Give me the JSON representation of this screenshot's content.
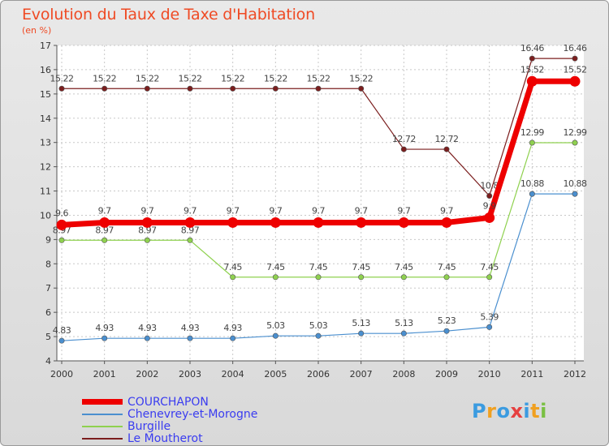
{
  "title": "Evolution du Taux de Taxe d'Habitation",
  "subtitle": "(en %)",
  "logo": {
    "text": "Proxiti",
    "letters": [
      "P",
      "r",
      "o",
      "x",
      "i",
      "t",
      "i"
    ],
    "colors": [
      "#3b9be0",
      "#f0a020",
      "#3b9be0",
      "#e64040",
      "#3b9be0",
      "#f0a020",
      "#7ac043"
    ]
  },
  "chart_data": {
    "type": "line",
    "title": "Evolution du Taux de Taxe d'Habitation",
    "ylabel": "(en %)",
    "xlabel": "",
    "ylim": [
      4,
      17
    ],
    "yticks": [
      4,
      5,
      6,
      7,
      8,
      9,
      10,
      11,
      12,
      13,
      14,
      15,
      16,
      17
    ],
    "grid": true,
    "legend_position": "bottom-left",
    "x": [
      "2000",
      "2001",
      "2002",
      "2003",
      "2004",
      "2005",
      "2006",
      "2007",
      "2008",
      "2009",
      "2010",
      "2011",
      "2012"
    ],
    "series": [
      {
        "name": "Le Moutherot",
        "color": "#7b1e1e",
        "values": [
          15.22,
          15.22,
          15.22,
          15.22,
          15.22,
          15.22,
          15.22,
          15.22,
          12.72,
          12.72,
          10.8,
          16.46,
          16.46
        ],
        "labels": [
          "15.22",
          "15.22",
          "15.22",
          "15.22",
          "15.22",
          "15.22",
          "15.22",
          "15.22",
          "12.72",
          "12.72",
          "10.8",
          "16.46",
          "16.46"
        ]
      },
      {
        "name": "Burgille",
        "color": "#8fd14f",
        "values": [
          8.97,
          8.97,
          8.97,
          8.97,
          7.45,
          7.45,
          7.45,
          7.45,
          7.45,
          7.45,
          7.45,
          12.99,
          12.99
        ],
        "labels": [
          "8.97",
          "8.97",
          "8.97",
          "8.97",
          "7.45",
          "7.45",
          "7.45",
          "7.45",
          "7.45",
          "7.45",
          "7.45",
          "12.99",
          "12.99"
        ]
      },
      {
        "name": "Chenevrey-et-Morogne",
        "color": "#4a8fcf",
        "values": [
          4.83,
          4.93,
          4.93,
          4.93,
          4.93,
          5.03,
          5.03,
          5.13,
          5.13,
          5.23,
          5.39,
          10.88,
          10.88
        ],
        "labels": [
          "4.83",
          "4.93",
          "4.93",
          "4.93",
          "4.93",
          "5.03",
          "5.03",
          "5.13",
          "5.13",
          "5.23",
          "5.39",
          "10.88",
          "10.88"
        ]
      },
      {
        "name": "COURCHAPON",
        "color": "#ee0000",
        "values": [
          9.6,
          9.7,
          9.7,
          9.7,
          9.7,
          9.7,
          9.7,
          9.7,
          9.7,
          9.7,
          9.9,
          15.52,
          15.52
        ],
        "labels": [
          "9.6",
          "9.7",
          "9.7",
          "9.7",
          "9.7",
          "9.7",
          "9.7",
          "9.7",
          "9.7",
          "9.7",
          "9.9",
          "15.52",
          "15.52"
        ]
      }
    ],
    "legend_order": [
      "COURCHAPON",
      "Chenevrey-et-Morogne",
      "Burgille",
      "Le Moutherot"
    ]
  }
}
